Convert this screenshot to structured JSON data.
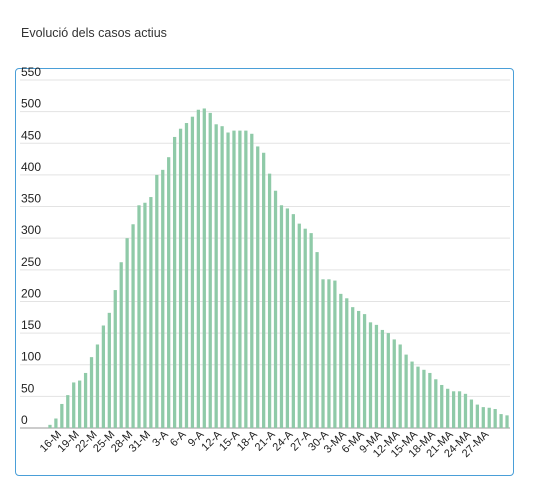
{
  "chart_data": {
    "type": "bar",
    "title": "Evolució dels casos actius",
    "xlabel": "",
    "ylabel": "",
    "ylim": [
      0,
      550
    ],
    "yticks": [
      0,
      50,
      100,
      150,
      200,
      250,
      300,
      350,
      400,
      450,
      500,
      550
    ],
    "grid": true,
    "legend": "none",
    "bar_color": "#8fcaa8",
    "border_color": "#4a9fd8",
    "categories": [
      "14-M",
      "15-M",
      "16-M",
      "17-M",
      "18-M",
      "19-M",
      "20-M",
      "21-M",
      "22-M",
      "23-M",
      "24-M",
      "25-M",
      "26-M",
      "27-M",
      "28-M",
      "29-M",
      "30-M",
      "31-M",
      "1-A",
      "2-A",
      "3-A",
      "4-A",
      "5-A",
      "6-A",
      "7-A",
      "8-A",
      "9-A",
      "10-A",
      "11-A",
      "12-A",
      "13-A",
      "14-A",
      "15-A",
      "16-A",
      "17-A",
      "18-A",
      "19-A",
      "20-A",
      "21-A",
      "22-A",
      "23-A",
      "24-A",
      "25-A",
      "26-A",
      "27-A",
      "28-A",
      "29-A",
      "30-A",
      "1-MA",
      "2-MA",
      "3-MA",
      "4-MA",
      "5-MA",
      "6-MA",
      "7-MA",
      "8-MA",
      "9-MA",
      "10-MA",
      "11-MA",
      "12-MA",
      "13-MA",
      "14-MA",
      "15-MA",
      "16-MA",
      "17-MA",
      "18-MA",
      "19-MA",
      "20-MA",
      "21-MA",
      "22-MA",
      "23-MA",
      "24-MA",
      "25-MA",
      "26-MA",
      "27-MA",
      "28-MA",
      "29-MA",
      "30-MA"
    ],
    "tick_labels": [
      "16-M",
      "19-M",
      "22-M",
      "25-M",
      "28-M",
      "31-M",
      "3-A",
      "6-A",
      "9-A",
      "12-A",
      "15-A",
      "18-A",
      "21-A",
      "24-A",
      "27-A",
      "30-A",
      "3-MA",
      "6-MA",
      "9-MA",
      "12-MA",
      "15-MA",
      "18-MA",
      "21-MA",
      "24-MA",
      "27-MA"
    ],
    "values": [
      5,
      15,
      38,
      52,
      72,
      75,
      87,
      112,
      132,
      162,
      182,
      218,
      262,
      300,
      322,
      352,
      356,
      365,
      400,
      408,
      428,
      460,
      473,
      482,
      492,
      503,
      505,
      498,
      480,
      477,
      467,
      470,
      470,
      470,
      465,
      445,
      435,
      402,
      375,
      352,
      347,
      338,
      323,
      315,
      308,
      278,
      235,
      235,
      233,
      212,
      205,
      191,
      185,
      180,
      167,
      163,
      155,
      150,
      140,
      132,
      116,
      105,
      97,
      92,
      87,
      77,
      68,
      62,
      58,
      58,
      54,
      45,
      37,
      33,
      32,
      30,
      22,
      20
    ]
  }
}
